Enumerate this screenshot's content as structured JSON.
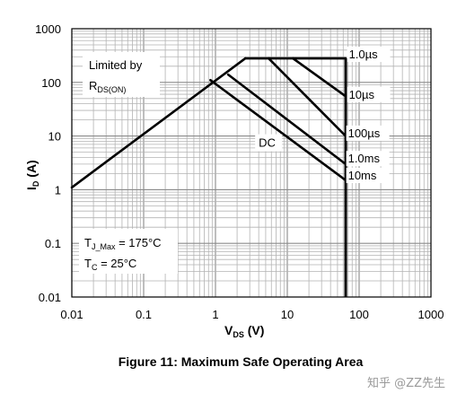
{
  "chart_data": {
    "type": "line",
    "title": "Figure 11: Maximum Safe Operating Area",
    "xlabel": {
      "main": "V",
      "sub": "DS",
      "unit": " (V)"
    },
    "ylabel": {
      "main": "I",
      "sub": "D",
      "unit": " (A)"
    },
    "x_scale": "log",
    "y_scale": "log",
    "xlim": [
      0.01,
      1000
    ],
    "ylim": [
      0.01,
      1000
    ],
    "x_ticks": [
      "0.01",
      "0.1",
      "1",
      "10",
      "100",
      "1000"
    ],
    "y_ticks": [
      "0.01",
      "0.1",
      "1",
      "10",
      "100",
      "1000"
    ],
    "grid": true,
    "rds_limit_line": {
      "x": [
        0.01,
        2.6
      ],
      "y": [
        1.1,
        280
      ]
    },
    "vds_max": 65,
    "current_max": 280,
    "series": [
      {
        "name": "1.0µs",
        "x": [
          2.6,
          65
        ],
        "y": [
          280,
          280
        ]
      },
      {
        "name": "10µs",
        "x": [
          12,
          65
        ],
        "y": [
          280,
          55
        ]
      },
      {
        "name": "100µs",
        "x": [
          5.5,
          65
        ],
        "y": [
          280,
          10
        ]
      },
      {
        "name": "1.0ms",
        "x": [
          1.5,
          65
        ],
        "y": [
          140,
          3
        ]
      },
      {
        "name": "DC",
        "x": [
          0.85,
          65
        ],
        "y": [
          110,
          1.5
        ]
      }
    ],
    "line_labels": [
      {
        "text": "1.0µs",
        "x": 72,
        "y": 280
      },
      {
        "text": "10µs",
        "x": 72,
        "y": 50
      },
      {
        "text": "100µs",
        "x": 70,
        "y": 9.5
      },
      {
        "text": "1.0ms",
        "x": 70,
        "y": 3.2
      },
      {
        "text": "10ms",
        "x": 70,
        "y": 1.55
      },
      {
        "text": "DC",
        "x": 4,
        "y": 6.3
      }
    ],
    "annotations": {
      "limited_by": "Limited by",
      "rds_main": "R",
      "rds_sub": "DS(ON)",
      "tj_main": "T",
      "tj_sub": "J_Max",
      "tj_value": " = 175°C",
      "tc_main": "T",
      "tc_sub": "C",
      "tc_value": " = 25°C"
    }
  },
  "watermark": "知乎 @ZZ先生"
}
